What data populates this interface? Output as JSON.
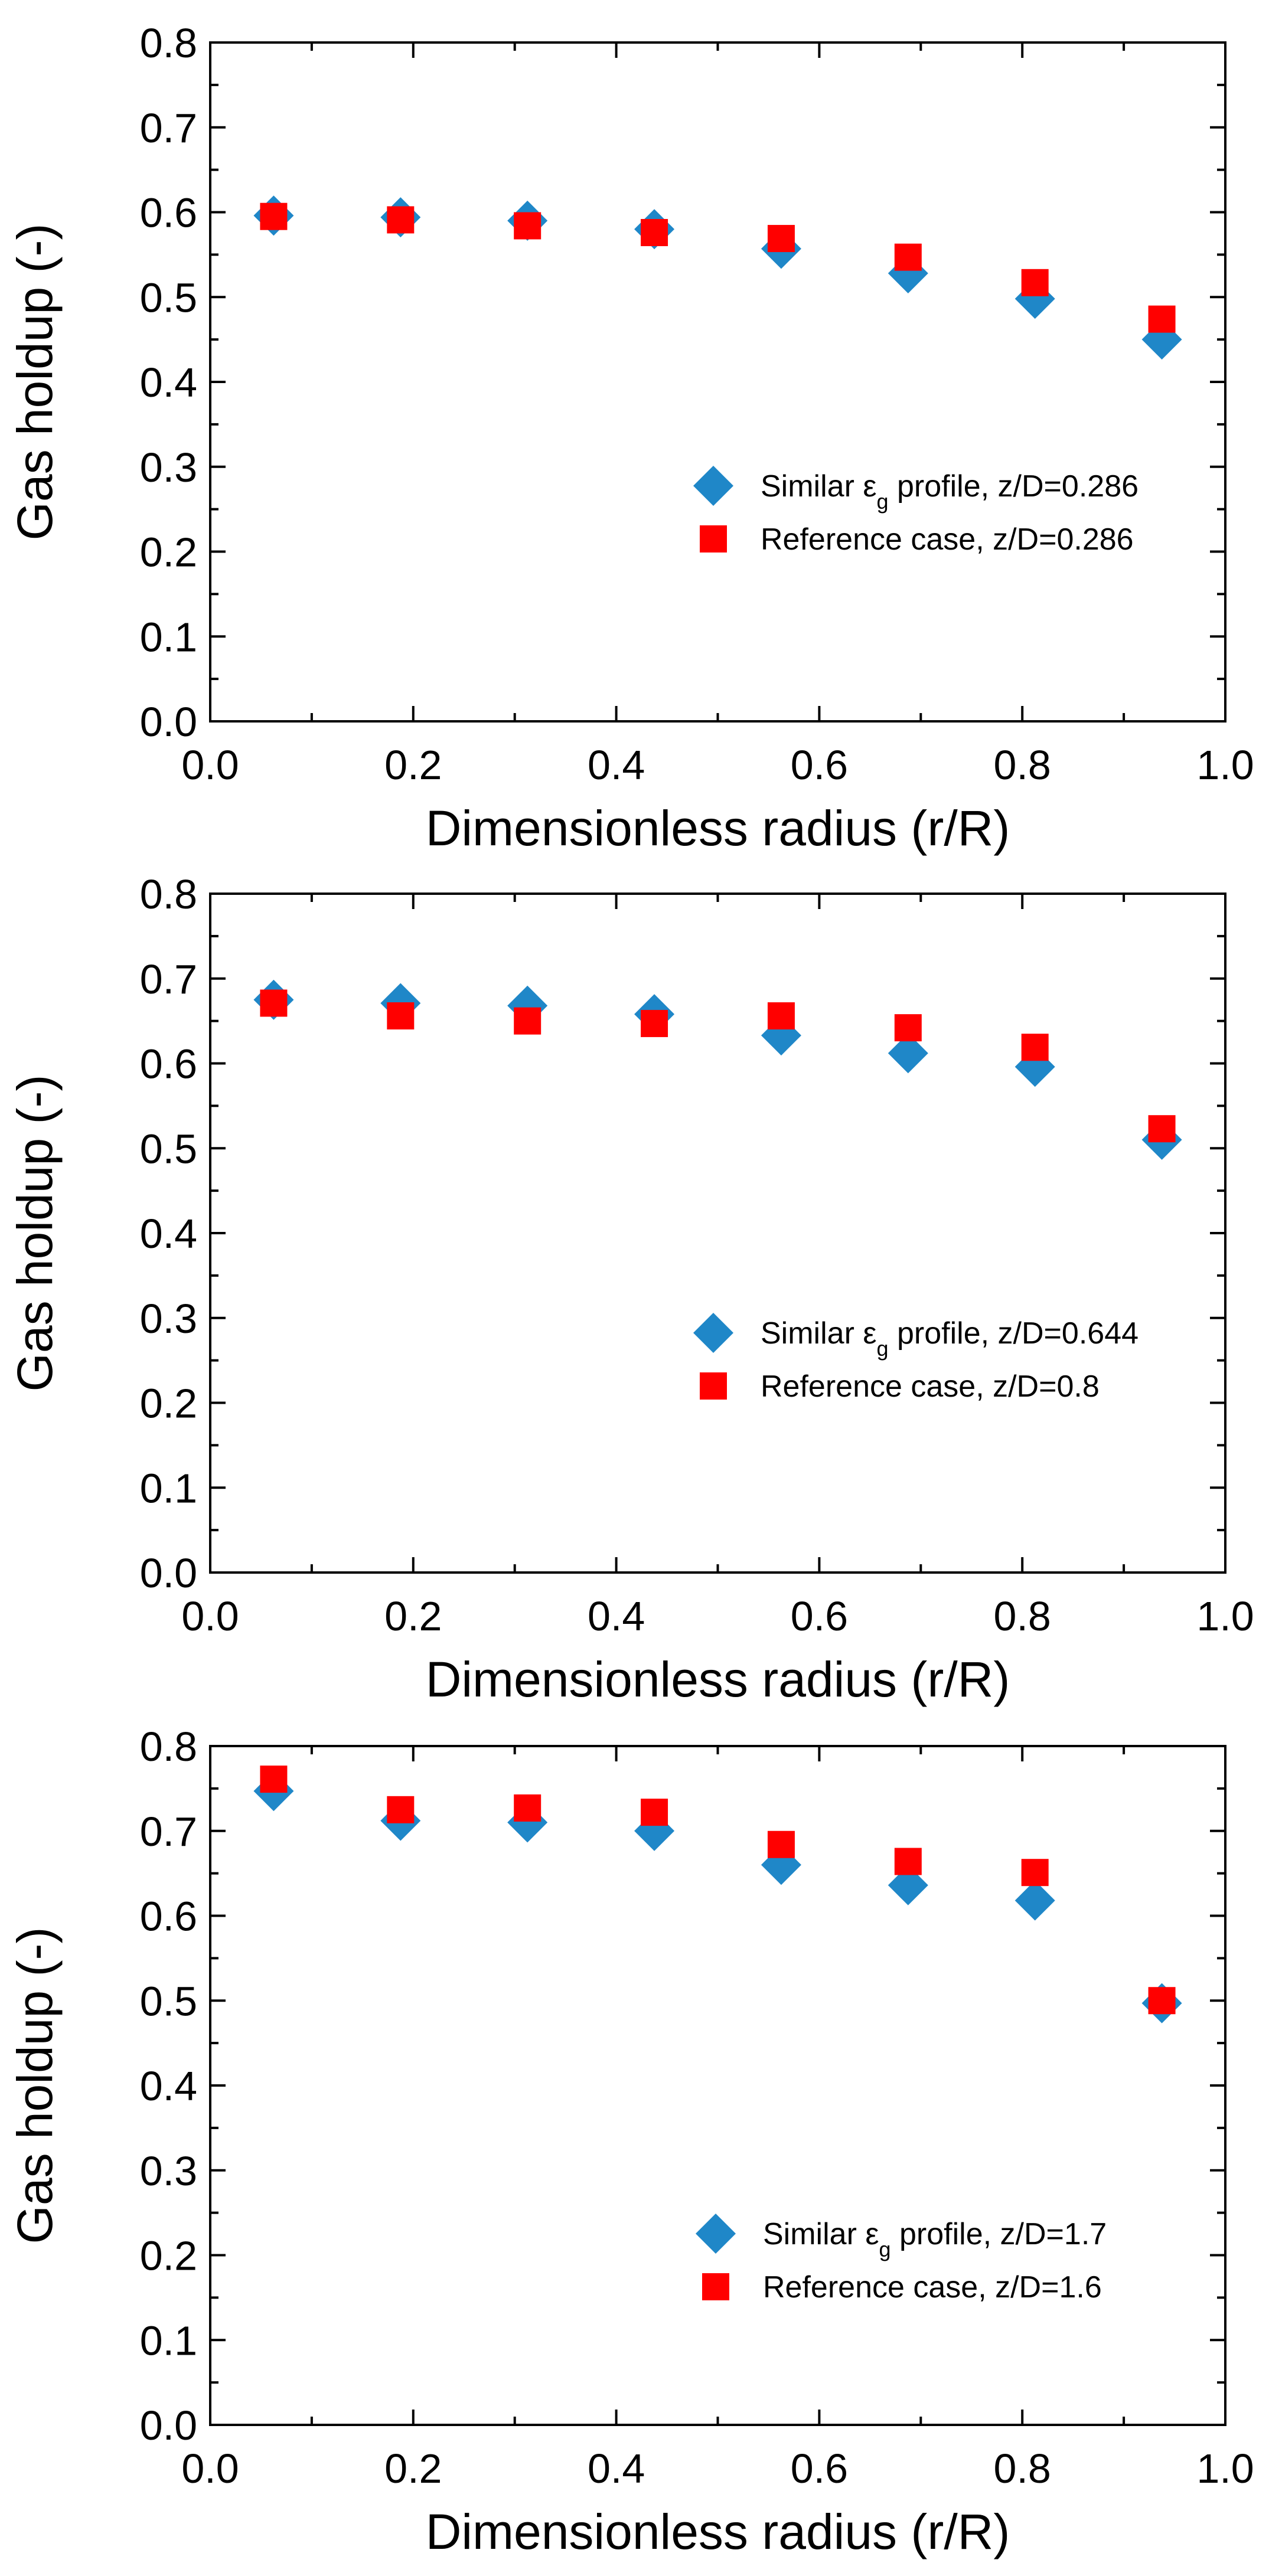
{
  "colors": {
    "similar": "#1f87c8",
    "reference": "#ff0000",
    "axis": "#000000"
  },
  "chart_data": [
    {
      "type": "scatter",
      "xlabel": "Dimensionless radius (r/R)",
      "ylabel": "Gas holdup (-)",
      "xlim": [
        0,
        1
      ],
      "ylim": [
        0,
        0.8
      ],
      "xticks": [
        "0.0",
        "0.2",
        "0.4",
        "0.6",
        "0.8",
        "1.0"
      ],
      "yticks": [
        "0.0",
        "0.1",
        "0.2",
        "0.3",
        "0.4",
        "0.5",
        "0.6",
        "0.7",
        "0.8"
      ],
      "legend_position": "center-right",
      "grid": false,
      "series": [
        {
          "name": "Similar εg profile, z/D=0.286",
          "legend_prefix": "Similar ε",
          "legend_sub": "g",
          "legend_suffix": " profile, z/D=0.286",
          "marker": "diamond",
          "color": "#1f87c8",
          "x": [
            0.0625,
            0.1875,
            0.3125,
            0.4375,
            0.5625,
            0.6875,
            0.8125,
            0.9375
          ],
          "y": [
            0.596,
            0.594,
            0.59,
            0.58,
            0.557,
            0.528,
            0.498,
            0.45
          ]
        },
        {
          "name": "Reference case, z/D=0.286",
          "legend_prefix": "Reference case, z/D=0.286",
          "legend_sub": "",
          "legend_suffix": "",
          "marker": "square",
          "color": "#ff0000",
          "x": [
            0.0625,
            0.1875,
            0.3125,
            0.4375,
            0.5625,
            0.6875,
            0.8125,
            0.9375
          ],
          "y": [
            0.595,
            0.591,
            0.584,
            0.576,
            0.569,
            0.547,
            0.517,
            0.474
          ]
        }
      ]
    },
    {
      "type": "scatter",
      "xlabel": "Dimensionless radius (r/R)",
      "ylabel": "Gas holdup (-)",
      "xlim": [
        0,
        1
      ],
      "ylim": [
        0,
        0.8
      ],
      "xticks": [
        "0.0",
        "0.2",
        "0.4",
        "0.6",
        "0.8",
        "1.0"
      ],
      "yticks": [
        "0.0",
        "0.1",
        "0.2",
        "0.3",
        "0.4",
        "0.5",
        "0.6",
        "0.7",
        "0.8"
      ],
      "legend_position": "center-right",
      "grid": false,
      "series": [
        {
          "name": "Similar εg profile, z/D=0.644",
          "legend_prefix": "Similar ε",
          "legend_sub": "g",
          "legend_suffix": " profile, z/D=0.644",
          "marker": "diamond",
          "color": "#1f87c8",
          "x": [
            0.0625,
            0.1875,
            0.3125,
            0.4375,
            0.5625,
            0.6875,
            0.8125,
            0.9375
          ],
          "y": [
            0.675,
            0.671,
            0.668,
            0.658,
            0.633,
            0.612,
            0.596,
            0.51
          ]
        },
        {
          "name": "Reference case, z/D=0.8",
          "legend_prefix": "Reference case, z/D=0.8",
          "legend_sub": "",
          "legend_suffix": "",
          "marker": "square",
          "color": "#ff0000",
          "x": [
            0.0625,
            0.1875,
            0.3125,
            0.4375,
            0.5625,
            0.6875,
            0.8125,
            0.9375
          ],
          "y": [
            0.671,
            0.656,
            0.65,
            0.647,
            0.656,
            0.642,
            0.619,
            0.523
          ]
        }
      ]
    },
    {
      "type": "scatter",
      "xlabel": "Dimensionless radius (r/R)",
      "ylabel": "Gas holdup (-)",
      "xlim": [
        0,
        1
      ],
      "ylim": [
        0,
        0.8
      ],
      "xticks": [
        "0.0",
        "0.2",
        "0.4",
        "0.6",
        "0.8",
        "1.0"
      ],
      "yticks": [
        "0.0",
        "0.1",
        "0.2",
        "0.3",
        "0.4",
        "0.5",
        "0.6",
        "0.7",
        "0.8"
      ],
      "legend_position": "bottom-right",
      "grid": false,
      "series": [
        {
          "name": "Similar εg profile, z/D=1.7",
          "legend_prefix": "Similar ε",
          "legend_sub": "g",
          "legend_suffix": " profile, z/D=1.7",
          "marker": "diamond",
          "color": "#1f87c8",
          "x": [
            0.0625,
            0.1875,
            0.3125,
            0.4375,
            0.5625,
            0.6875,
            0.8125,
            0.9375
          ],
          "y": [
            0.747,
            0.712,
            0.71,
            0.7,
            0.66,
            0.636,
            0.618,
            0.497
          ]
        },
        {
          "name": "Reference case, z/D=1.6",
          "legend_prefix": "Reference case, z/D=1.6",
          "legend_sub": "",
          "legend_suffix": "",
          "marker": "square",
          "color": "#ff0000",
          "x": [
            0.0625,
            0.1875,
            0.3125,
            0.4375,
            0.5625,
            0.6875,
            0.8125,
            0.9375
          ],
          "y": [
            0.761,
            0.725,
            0.727,
            0.722,
            0.684,
            0.664,
            0.651,
            0.5
          ]
        }
      ]
    }
  ]
}
